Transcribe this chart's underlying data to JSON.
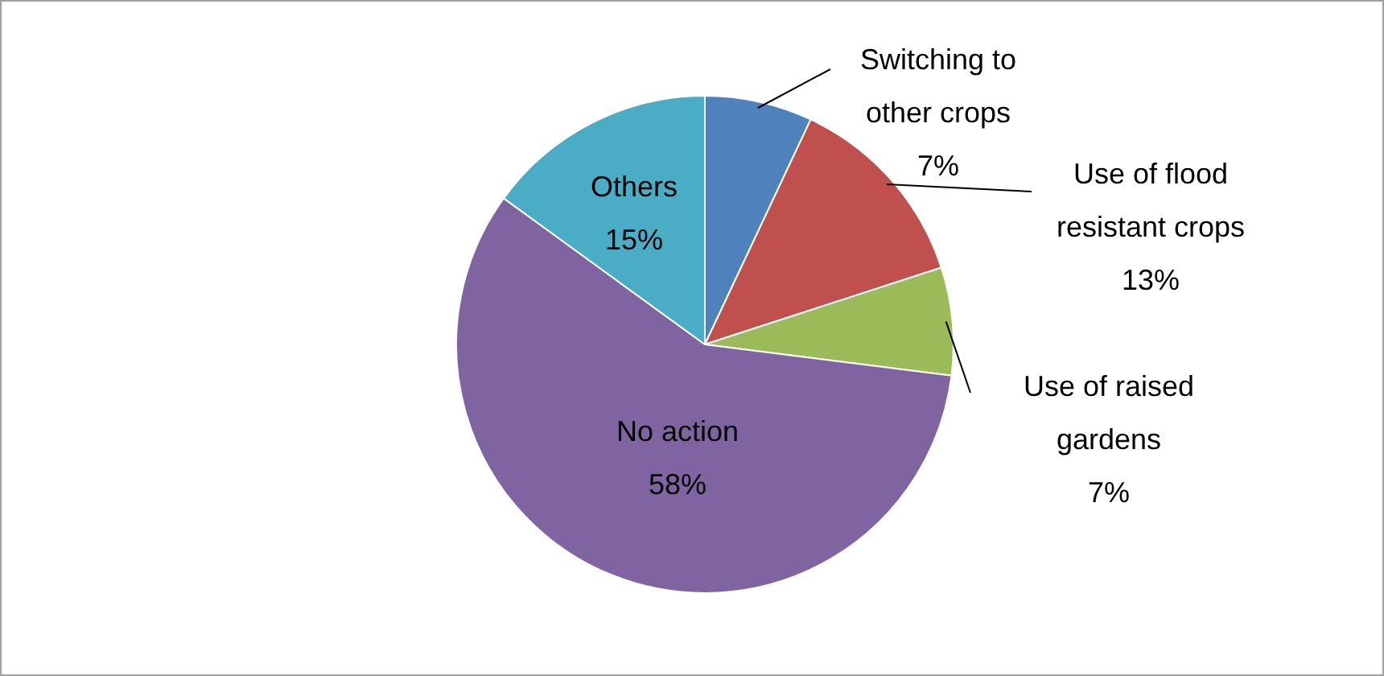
{
  "chart_data": {
    "type": "pie",
    "categories": [
      "Switching to other crops",
      "Use of flood resistant crops",
      "Use of raised gardens",
      "No action",
      "Others"
    ],
    "values": [
      7,
      13,
      7,
      58,
      15
    ],
    "colors": [
      "#4f81bd",
      "#c0504d",
      "#9bbb59",
      "#8064a2",
      "#4bacc6"
    ],
    "value_labels": [
      "7%",
      "13%",
      "7%",
      "58%",
      "15%"
    ],
    "legend": false
  }
}
